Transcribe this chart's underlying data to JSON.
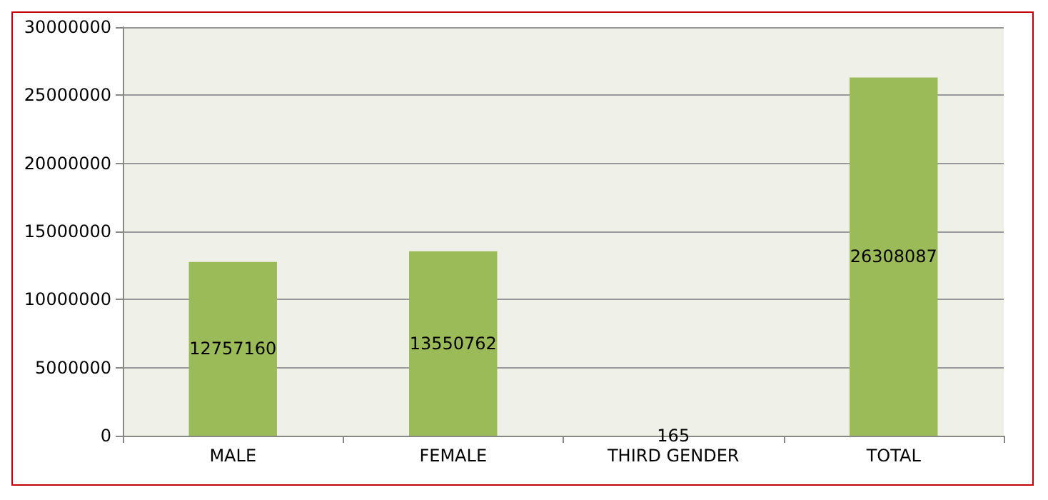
{
  "chart_data": {
    "type": "bar",
    "categories": [
      "MALE",
      "FEMALE",
      "THIRD GENDER",
      "TOTAL"
    ],
    "values": [
      12757160,
      13550762,
      165,
      26308087
    ],
    "color": "#9bbb59",
    "ylim": [
      0,
      30000000
    ],
    "yticks": [
      0,
      5000000,
      10000000,
      15000000,
      20000000,
      25000000,
      30000000
    ],
    "grid": "y",
    "data_labels": true
  }
}
